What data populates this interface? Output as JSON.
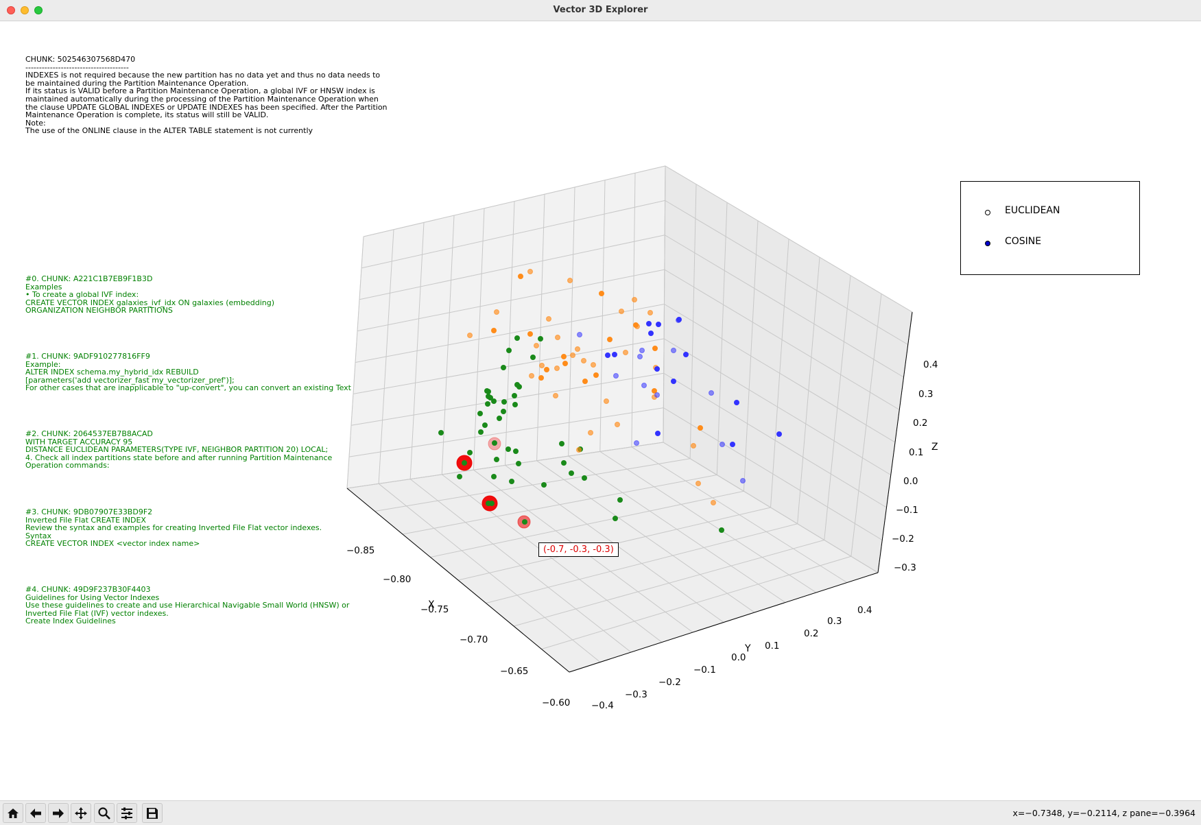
{
  "window": {
    "title": "Vector 3D Explorer"
  },
  "query_text": "CHUNK: 502546307568D470\n--------------------------------------\nINDEXES is not required because the new partition has no data yet and thus no data needs to\nbe maintained during the Partition Maintenance Operation.\nIf its status is VALID before a Partition Maintenance Operation, a global IVF or HNSW index is\nmaintained automatically during the processing of the Partition Maintenance Operation when\nthe clause UPDATE GLOBAL INDEXES or UPDATE INDEXES has been specified. After the Partition\nMaintenance Operation is complete, its status will still be VALID.\nNote:\nThe use of the ONLINE clause in the ALTER TABLE statement is not currently",
  "results": [
    {
      "text": "#0. CHUNK: A221C1B7EB9F1B3D\nExamples\n• To create a global IVF index:\nCREATE VECTOR INDEX galaxies_ivf_idx ON galaxies (embedding)\nORGANIZATION NEIGHBOR PARTITIONS"
    },
    {
      "text": "#1. CHUNK: 9ADF910277816FF9\nExample:\nALTER INDEX schema.my_hybrid_idx REBUILD\n[parameters('add vectorizer_fast my_vectorizer_pref')];\nFor other cases that are inapplicable to \"up-convert\", you can convert an existing Text"
    },
    {
      "text": "#2. CHUNK: 2064537EB7B8ACAD\nWITH TARGET ACCURACY 95\nDISTANCE EUCLIDEAN PARAMETERS(TYPE IVF, NEIGHBOR PARTITION 20) LOCAL;\n4. Check all index partitions state before and after running Partition Maintenance\nOperation commands:"
    },
    {
      "text": "#3. CHUNK: 9DB07907E33BD9F2\nInverted File Flat CREATE INDEX\nReview the syntax and examples for creating Inverted File Flat vector indexes.\nSyntax\nCREATE VECTOR INDEX <vector index name>"
    },
    {
      "text": "#4. CHUNK: 49D9F237B30F4403\nGuidelines for Using Vector Indexes\nUse these guidelines to create and use Hierarchical Navigable Small World (HNSW) or\nInverted File Flat (IVF) vector indexes.\nCreate Index Guidelines"
    }
  ],
  "legend": [
    {
      "label": "EUCLIDEAN",
      "color": "#ffffff"
    },
    {
      "label": "COSINE",
      "color": "#0000cc"
    }
  ],
  "annotation": {
    "text": "(-0.7, -0.3, -0.3)",
    "color": "#dd0000"
  },
  "status_bar": {
    "coords": "x=−0.7348, y=−0.2114, z pane=−0.3964"
  },
  "toolbar": {
    "buttons": [
      {
        "name": "home-button",
        "icon": "home-icon"
      },
      {
        "name": "back-button",
        "icon": "arrow-left-icon"
      },
      {
        "name": "forward-button",
        "icon": "arrow-right-icon"
      },
      {
        "name": "pan-button",
        "icon": "move-icon"
      },
      {
        "name": "zoom-button",
        "icon": "search-icon"
      },
      {
        "name": "configure-button",
        "icon": "sliders-icon"
      },
      {
        "name": "save-button",
        "icon": "save-icon"
      }
    ]
  },
  "chart_data": {
    "type": "scatter3d",
    "axes": {
      "x": {
        "label": "X",
        "ticks": [
          "−0.85",
          "−0.80",
          "−0.75",
          "−0.70",
          "−0.65",
          "−0.60"
        ]
      },
      "y": {
        "label": "Y",
        "ticks": [
          "−0.4",
          "−0.3",
          "−0.2",
          "−0.1",
          "0.0",
          "0.1",
          "0.2",
          "0.3",
          "0.4"
        ]
      },
      "z": {
        "label": "Z",
        "ticks": [
          "0.4",
          "0.3",
          "0.2",
          "0.1",
          "0.0",
          "−0.1",
          "−0.2",
          "−0.3"
        ]
      }
    },
    "grid": true,
    "legend_position": "top-right",
    "series_colors": {
      "green": "#1a8a1a",
      "orange": "#ff8c1a",
      "blue": "#3333ff",
      "highlight": "#ee0000"
    }
  }
}
